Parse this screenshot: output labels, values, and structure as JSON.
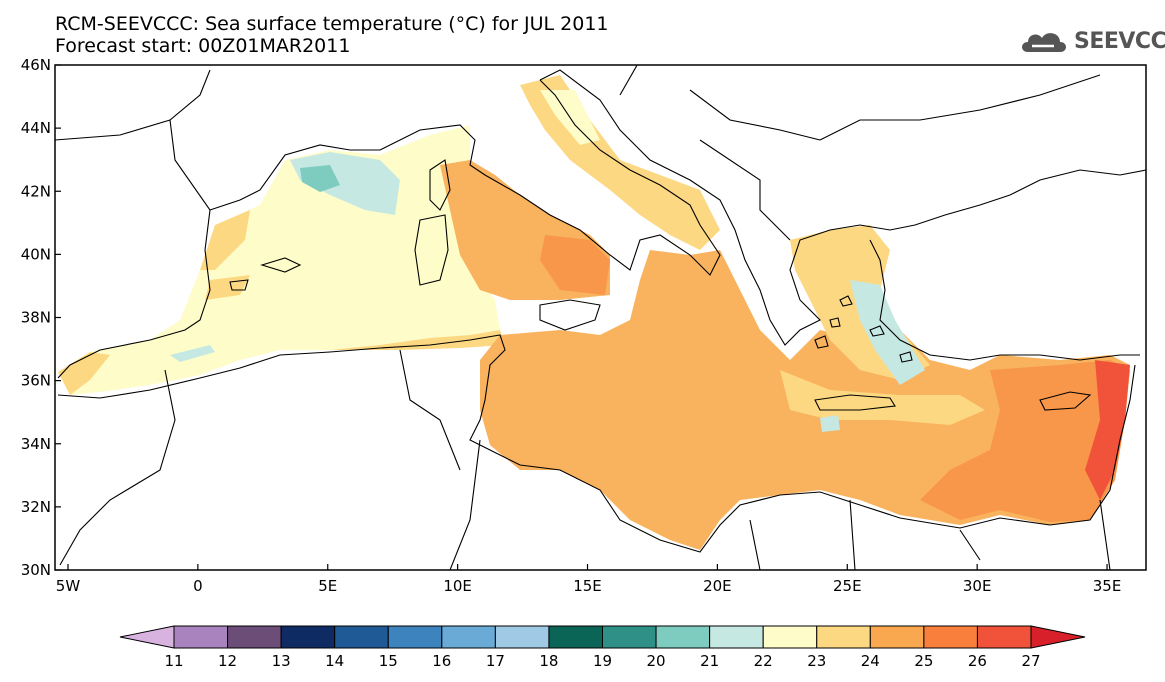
{
  "header": {
    "title_line1": "RCM-SEEVCCC: Sea surface temperature (°C) for JUL 2011",
    "title_line2": "Forecast start: 00Z01MAR2011",
    "logo_text": "SEEVCCC"
  },
  "map": {
    "lat_labels": [
      "46N",
      "44N",
      "42N",
      "40N",
      "38N",
      "36N",
      "34N",
      "32N",
      "30N"
    ],
    "lat_values": [
      46,
      44,
      42,
      40,
      38,
      36,
      34,
      32,
      30
    ],
    "lon_labels": [
      "5W",
      "0",
      "5E",
      "10E",
      "15E",
      "20E",
      "25E",
      "30E",
      "35E"
    ],
    "lon_values": [
      -5,
      0,
      5,
      10,
      15,
      20,
      25,
      30,
      35
    ],
    "lon_range": [
      -5.5,
      36.5
    ],
    "lat_range": [
      30,
      46
    ]
  },
  "colorbar": {
    "labels": [
      "11",
      "12",
      "13",
      "14",
      "15",
      "16",
      "17",
      "18",
      "19",
      "20",
      "21",
      "22",
      "23",
      "24",
      "25",
      "26",
      "27"
    ],
    "colors": [
      "#d9b3e0",
      "#a883bd",
      "#6b4d78",
      "#0e2b63",
      "#1f5a96",
      "#3d84bf",
      "#6aaad6",
      "#9fc9e4",
      "#0b6556",
      "#2f9088",
      "#7ecbbf",
      "#c6e8e3",
      "#fefcc8",
      "#fdd882",
      "#f9a84f",
      "#f8803c",
      "#f1533a",
      "#d8202a"
    ]
  },
  "legend_colors": {
    "c22": "#fefcc8",
    "c21": "#c6e8e3",
    "c20": "#7ecbbf",
    "c23": "#fdd882",
    "c24": "#f9b25d",
    "c25": "#f8964a",
    "c26": "#f1533a"
  }
}
